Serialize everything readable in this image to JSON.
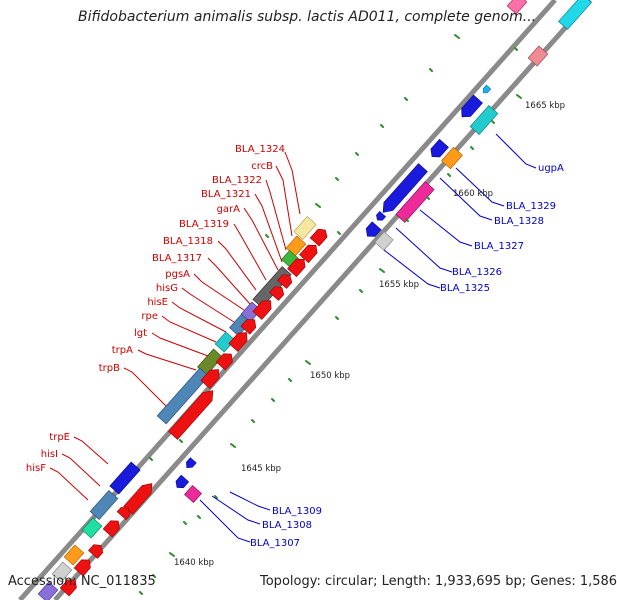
{
  "title": "Bifidobacterium animalis subsp. lactis AD011, complete genom...",
  "footer": {
    "accession": "Accession: NC_011835",
    "topology": "Topology: circular; Length: 1,933,695 bp; Genes: 1,586"
  },
  "scale_labels": [
    "1640 kbp",
    "1645 kbp",
    "1650 kbp",
    "1655 kbp",
    "1660 kbp",
    "1665 kbp"
  ],
  "left_labels": [
    "BLA_1324",
    "crcB",
    "BLA_1322",
    "BLA_1321",
    "garA",
    "BLA_1319",
    "BLA_1318",
    "BLA_1317",
    "pgsA",
    "hisG",
    "hisE",
    "rpe",
    "lgt",
    "trpA",
    "trpB",
    "trpE",
    "hisI",
    "hisF"
  ],
  "right_labels": [
    "ugpA",
    "BLA_1329",
    "BLA_1328",
    "BLA_1327",
    "BLA_1326",
    "BLA_1325",
    "BLA_1309",
    "BLA_1308",
    "BLA_1307"
  ],
  "colors": {
    "left_label": "#cc0000",
    "right_label": "#0000cc",
    "backbone": "#888888",
    "tick": "#2e8b2e"
  }
}
